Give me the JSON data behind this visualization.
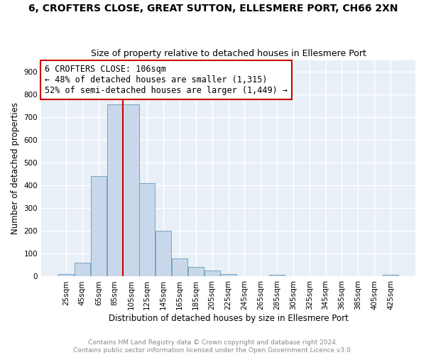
{
  "title": "6, CROFTERS CLOSE, GREAT SUTTON, ELLESMERE PORT, CH66 2XN",
  "subtitle": "Size of property relative to detached houses in Ellesmere Port",
  "xlabel": "Distribution of detached houses by size in Ellesmere Port",
  "ylabel": "Number of detached properties",
  "bin_labels": [
    "25sqm",
    "45sqm",
    "65sqm",
    "85sqm",
    "105sqm",
    "125sqm",
    "145sqm",
    "165sqm",
    "185sqm",
    "205sqm",
    "225sqm",
    "245sqm",
    "265sqm",
    "285sqm",
    "305sqm",
    "325sqm",
    "345sqm",
    "365sqm",
    "385sqm",
    "405sqm",
    "425sqm"
  ],
  "bar_values": [
    10,
    60,
    440,
    755,
    755,
    410,
    200,
    78,
    42,
    26,
    12,
    0,
    0,
    8,
    0,
    0,
    0,
    0,
    0,
    0,
    8
  ],
  "bar_color": "#c8d8ea",
  "bar_edge_color": "#6699bb",
  "property_line_label": "6 CROFTERS CLOSE: 106sqm",
  "annotation_line1": "← 48% of detached houses are smaller (1,315)",
  "annotation_line2": "52% of semi-detached houses are larger (1,449) →",
  "annotation_box_color": "#ffffff",
  "annotation_box_edge_color": "#cc0000",
  "vline_color": "#cc0000",
  "ylim": [
    0,
    950
  ],
  "yticks": [
    0,
    100,
    200,
    300,
    400,
    500,
    600,
    700,
    800,
    900
  ],
  "footer_text": "Contains HM Land Registry data © Crown copyright and database right 2024.\nContains public sector information licensed under the Open Government Licence v3.0.",
  "bg_color": "#ffffff",
  "plot_bg_color": "#e8eff6",
  "grid_color": "#ffffff",
  "title_fontsize": 10,
  "subtitle_fontsize": 9,
  "xlabel_fontsize": 8.5,
  "ylabel_fontsize": 8.5,
  "tick_fontsize": 7.5,
  "annotation_fontsize": 8.5,
  "footer_fontsize": 6.5
}
